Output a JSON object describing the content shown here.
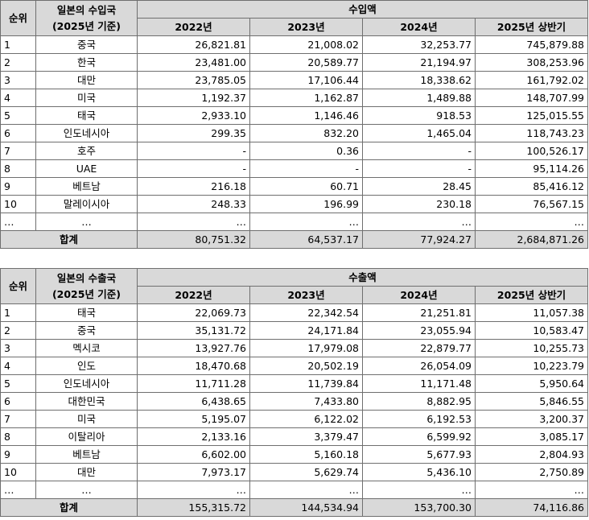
{
  "import": {
    "rank_header": "순위",
    "country_header_line1": "일본의 수입국",
    "country_header_line2": "(2025년 기준)",
    "value_header": "수입액",
    "years": [
      "2022년",
      "2023년",
      "2024년",
      "2025년 상반기"
    ],
    "rows": [
      {
        "rank": "1",
        "country": "중국",
        "v": [
          "26,821.81",
          "21,008.02",
          "32,253.77",
          "745,879.88"
        ]
      },
      {
        "rank": "2",
        "country": "한국",
        "v": [
          "23,481.00",
          "20,589.77",
          "21,194.97",
          "308,253.96"
        ]
      },
      {
        "rank": "3",
        "country": "대만",
        "v": [
          "23,785.05",
          "17,106.44",
          "18,338.62",
          "161,792.02"
        ]
      },
      {
        "rank": "4",
        "country": "미국",
        "v": [
          "1,192.37",
          "1,162.87",
          "1,489.88",
          "148,707.99"
        ]
      },
      {
        "rank": "5",
        "country": "태국",
        "v": [
          "2,933.10",
          "1,146.46",
          "918.53",
          "125,015.55"
        ]
      },
      {
        "rank": "6",
        "country": "인도네시아",
        "v": [
          "299.35",
          "832.20",
          "1,465.04",
          "118,743.23"
        ]
      },
      {
        "rank": "7",
        "country": "호주",
        "v": [
          "-",
          "0.36",
          "-",
          "100,526.17"
        ]
      },
      {
        "rank": "8",
        "country": "UAE",
        "v": [
          "-",
          "-",
          "-",
          "95,114.26"
        ]
      },
      {
        "rank": "9",
        "country": "베트남",
        "v": [
          "216.18",
          "60.71",
          "28.45",
          "85,416.12"
        ]
      },
      {
        "rank": "10",
        "country": "말레이시아",
        "v": [
          "248.33",
          "196.99",
          "230.18",
          "76,567.15"
        ]
      },
      {
        "rank": "…",
        "country": "…",
        "v": [
          "…",
          "…",
          "…",
          "…"
        ]
      }
    ],
    "total_label": "합계",
    "totals": [
      "80,751.32",
      "64,537.17",
      "77,924.27",
      "2,684,871.26"
    ]
  },
  "export": {
    "rank_header": "순위",
    "country_header_line1": "일본의 수출국",
    "country_header_line2": "(2025년 기준)",
    "value_header": "수출액",
    "years": [
      "2022년",
      "2023년",
      "2024년",
      "2025년 상반기"
    ],
    "rows": [
      {
        "rank": "1",
        "country": "태국",
        "v": [
          "22,069.73",
          "22,342.54",
          "21,251.81",
          "11,057.38"
        ]
      },
      {
        "rank": "2",
        "country": "중국",
        "v": [
          "35,131.72",
          "24,171.84",
          "23,055.94",
          "10,583.47"
        ]
      },
      {
        "rank": "3",
        "country": "멕시코",
        "v": [
          "13,927.76",
          "17,979.08",
          "22,879.77",
          "10,255.73"
        ]
      },
      {
        "rank": "4",
        "country": "인도",
        "v": [
          "18,470.68",
          "20,502.19",
          "26,054.09",
          "10,223.79"
        ]
      },
      {
        "rank": "5",
        "country": "인도네시아",
        "v": [
          "11,711.28",
          "11,739.84",
          "11,171.48",
          "5,950.64"
        ]
      },
      {
        "rank": "6",
        "country": "대한민국",
        "v": [
          "6,438.65",
          "7,433.80",
          "8,882.95",
          "5,846.55"
        ]
      },
      {
        "rank": "7",
        "country": "미국",
        "v": [
          "5,195.07",
          "6,122.02",
          "6,192.53",
          "3,200.37"
        ]
      },
      {
        "rank": "8",
        "country": "이탈리아",
        "v": [
          "2,133.16",
          "3,379.47",
          "6,599.92",
          "3,085.17"
        ]
      },
      {
        "rank": "9",
        "country": "베트남",
        "v": [
          "6,602.00",
          "5,160.18",
          "5,677.93",
          "2,804.93"
        ]
      },
      {
        "rank": "10",
        "country": "대만",
        "v": [
          "7,973.17",
          "5,629.74",
          "5,436.10",
          "2,750.89"
        ]
      },
      {
        "rank": "…",
        "country": "…",
        "v": [
          "…",
          "…",
          "…",
          "…"
        ]
      }
    ],
    "total_label": "합계",
    "totals": [
      "155,315.72",
      "144,534.94",
      "153,700.30",
      "74,116.86"
    ]
  }
}
